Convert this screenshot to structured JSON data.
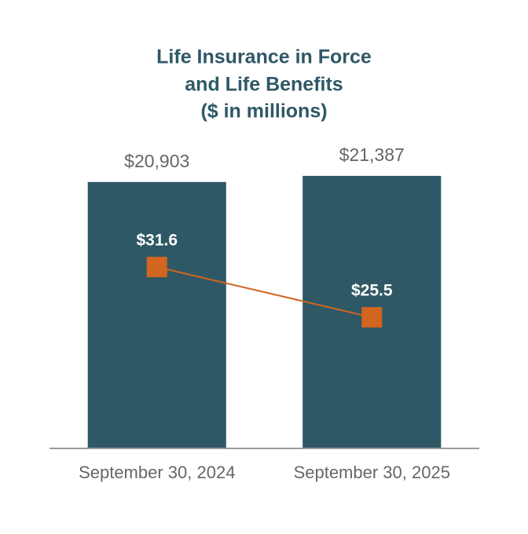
{
  "chart_data": {
    "type": "bar",
    "title": [
      "Life Insurance in Force",
      "and Life Benefits",
      "($ in millions)"
    ],
    "categories": [
      "September 30, 2024",
      "September 30, 2025"
    ],
    "ylim": [
      0,
      22000
    ],
    "y2lim": [
      9.7,
      43.6
    ],
    "series": [
      {
        "type": "bar",
        "color": "#2f5866",
        "values": [
          20903,
          21387
        ],
        "value_labels": [
          "$20,903",
          "$21,387"
        ]
      },
      {
        "type": "line",
        "axis": "y2",
        "color": "#d2651f",
        "values": [
          31.6,
          25.5
        ],
        "value_labels": [
          "$31.6",
          "$25.5"
        ]
      }
    ]
  }
}
